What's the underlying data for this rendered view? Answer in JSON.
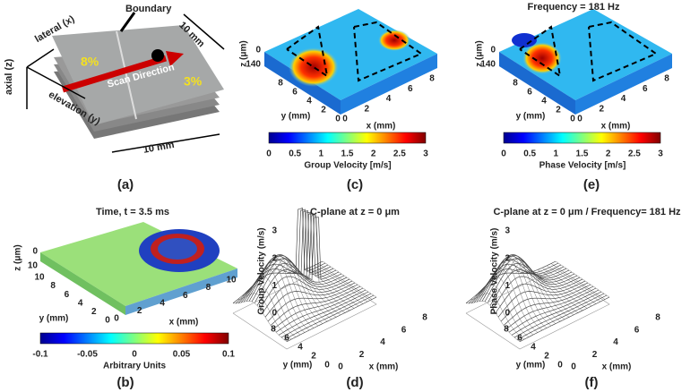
{
  "panel_a": {
    "caption": "(a)",
    "boundary": "Boundary",
    "lateral": "lateral (x)",
    "axial": "axial (z)",
    "elevation": "elevation (y)",
    "left_concentration": "8%",
    "right_concentration": "3%",
    "scan_direction": "Scan Direction",
    "top_length": "10 mm",
    "bottom_length": "10 mm"
  },
  "panel_b": {
    "caption": "(b)",
    "title": "Time, t = 3.5 ms",
    "z_label": "z (μm)",
    "z_ticks": [
      "0",
      "10"
    ],
    "y_label": "y (mm)",
    "y_ticks": [
      "10",
      "8",
      "6",
      "4",
      "2",
      "0"
    ],
    "x_label": "x (mm)",
    "x_ticks": [
      "0",
      "2",
      "4",
      "6",
      "8",
      "10"
    ],
    "colorbar_label": "Arbitrary Units",
    "colorbar_ticks": [
      "-0.1",
      "-0.05",
      "0",
      "0.05",
      "0.1"
    ]
  },
  "panel_c": {
    "caption": "(c)",
    "z_label": "z (μm)",
    "z_ticks": [
      "0",
      "140"
    ],
    "y_label": "y (mm)",
    "y_ticks": [
      "8",
      "6",
      "4",
      "2",
      "0"
    ],
    "x_label": "x (mm)",
    "x_ticks": [
      "0",
      "2",
      "4",
      "6",
      "8"
    ],
    "colorbar_label": "Group Velocity [m/s]",
    "colorbar_ticks": [
      "0",
      "0.5",
      "1",
      "1.5",
      "2",
      "2.5",
      "3"
    ]
  },
  "panel_d": {
    "caption": "(d)",
    "title": "C-plane at z = 0 μm",
    "z_label": "Group Velocity (m/s)",
    "z_ticks": [
      "0",
      "1",
      "2",
      "3"
    ],
    "y_label": "y (mm)",
    "y_ticks": [
      "8",
      "6",
      "4",
      "2",
      "0"
    ],
    "x_label": "x (mm)",
    "x_ticks": [
      "0",
      "2",
      "4",
      "6",
      "8"
    ]
  },
  "panel_e": {
    "caption": "(e)",
    "title": "Frequency = 181 Hz",
    "z_label": "z (μm)",
    "z_ticks": [
      "0",
      "140"
    ],
    "y_label": "y (mm)",
    "y_ticks": [
      "8",
      "6",
      "4",
      "2",
      "0"
    ],
    "x_label": "x (mm)",
    "x_ticks": [
      "0",
      "2",
      "4",
      "6",
      "8"
    ],
    "colorbar_label": "Phase Velocity [m/s]",
    "colorbar_ticks": [
      "0",
      "0.5",
      "1",
      "1.5",
      "2",
      "2.5",
      "3"
    ]
  },
  "panel_f": {
    "caption": "(f)",
    "title": "C-plane at z = 0 μm / Frequency= 181 Hz",
    "z_label": "Phase Velocity (m/s)",
    "z_ticks": [
      "0",
      "1",
      "2",
      "3"
    ],
    "y_label": "y (mm)",
    "y_ticks": [
      "8",
      "6",
      "4",
      "2",
      "0"
    ],
    "x_label": "x (mm)",
    "x_ticks": [
      "0",
      "2",
      "4",
      "6",
      "8"
    ]
  }
}
